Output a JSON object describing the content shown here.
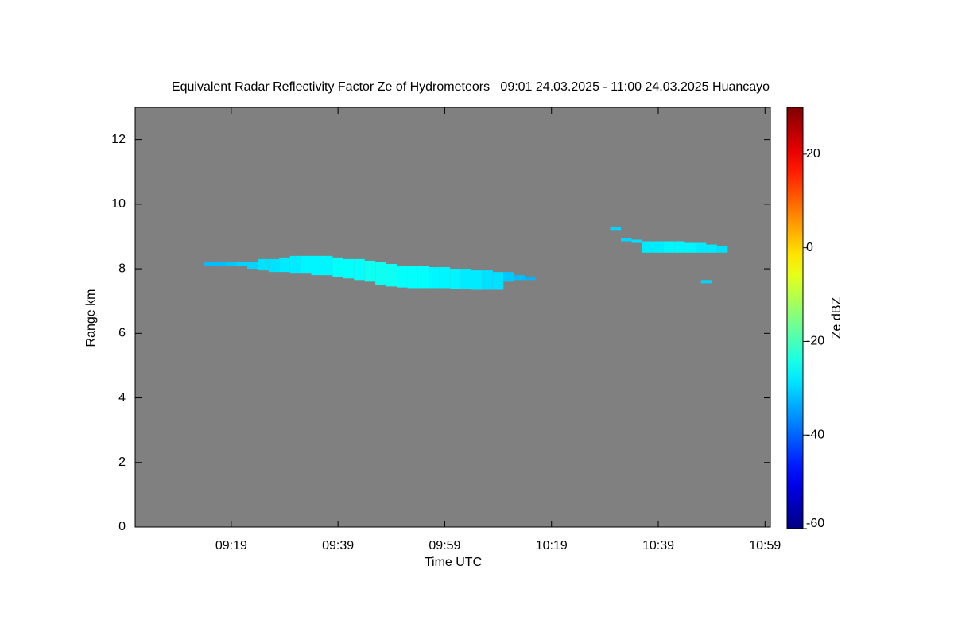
{
  "chart_data": {
    "type": "radar-heatmap",
    "title": "Equivalent Radar Reflectivity Factor Ze of Hydrometeors   09:01 24.03.2025 - 11:00 24.03.2025 Huancayo",
    "x_label": "Time UTC",
    "y_label": "Range km",
    "colorbar_label": "Ze dBZ",
    "colormap": "jet",
    "background": "#808080",
    "xlim": [
      541,
      660
    ],
    "xticks": [
      {
        "value": 559,
        "label": "09:19"
      },
      {
        "value": 579,
        "label": "09:39"
      },
      {
        "value": 599,
        "label": "09:59"
      },
      {
        "value": 619,
        "label": "10:19"
      },
      {
        "value": 639,
        "label": "10:39"
      },
      {
        "value": 659,
        "label": "10:59"
      }
    ],
    "ylim": [
      0,
      13
    ],
    "yticks": [
      0,
      2,
      4,
      6,
      8,
      10,
      12
    ],
    "clim": [
      -60,
      30
    ],
    "cticks": [
      -60,
      -40,
      -20,
      0,
      20
    ],
    "cells": {
      "x": [
        555,
        557,
        559,
        561,
        563,
        565,
        567,
        569,
        571,
        573,
        575,
        577,
        579,
        581,
        583,
        585,
        587,
        589,
        591,
        593,
        595,
        597,
        599,
        601,
        603,
        605,
        607,
        609,
        611,
        613,
        615,
        631,
        633,
        635,
        637,
        639,
        641,
        643,
        645,
        647,
        649,
        651,
        648
      ],
      "range_bottom": [
        8.1,
        8.1,
        8.1,
        8.1,
        8.0,
        7.95,
        7.9,
        7.9,
        7.85,
        7.85,
        7.8,
        7.8,
        7.75,
        7.7,
        7.65,
        7.6,
        7.5,
        7.45,
        7.42,
        7.4,
        7.4,
        7.4,
        7.4,
        7.38,
        7.36,
        7.35,
        7.35,
        7.35,
        7.6,
        7.65,
        7.65,
        9.2,
        8.85,
        8.8,
        8.5,
        8.5,
        8.5,
        8.5,
        8.5,
        8.5,
        8.5,
        8.5,
        7.55
      ],
      "range_top": [
        8.2,
        8.2,
        8.2,
        8.2,
        8.2,
        8.3,
        8.3,
        8.35,
        8.4,
        8.4,
        8.4,
        8.4,
        8.35,
        8.3,
        8.3,
        8.25,
        8.2,
        8.15,
        8.1,
        8.1,
        8.1,
        8.05,
        8.05,
        8.0,
        8.0,
        7.95,
        7.95,
        7.9,
        7.9,
        7.8,
        7.75,
        9.3,
        8.95,
        8.9,
        8.85,
        8.85,
        8.85,
        8.85,
        8.8,
        8.8,
        8.75,
        8.7,
        7.65
      ],
      "ze": [
        -32,
        -32,
        -31,
        -30,
        -30,
        -29,
        -29,
        -28,
        -28,
        -27,
        -27,
        -27,
        -26,
        -26,
        -26,
        -25,
        -25,
        -25,
        -26,
        -26,
        -26,
        -27,
        -27,
        -27,
        -28,
        -28,
        -29,
        -29,
        -31,
        -32,
        -33,
        -30,
        -30,
        -29,
        -28,
        -28,
        -27,
        -27,
        -27,
        -28,
        -28,
        -29,
        -30
      ]
    }
  }
}
